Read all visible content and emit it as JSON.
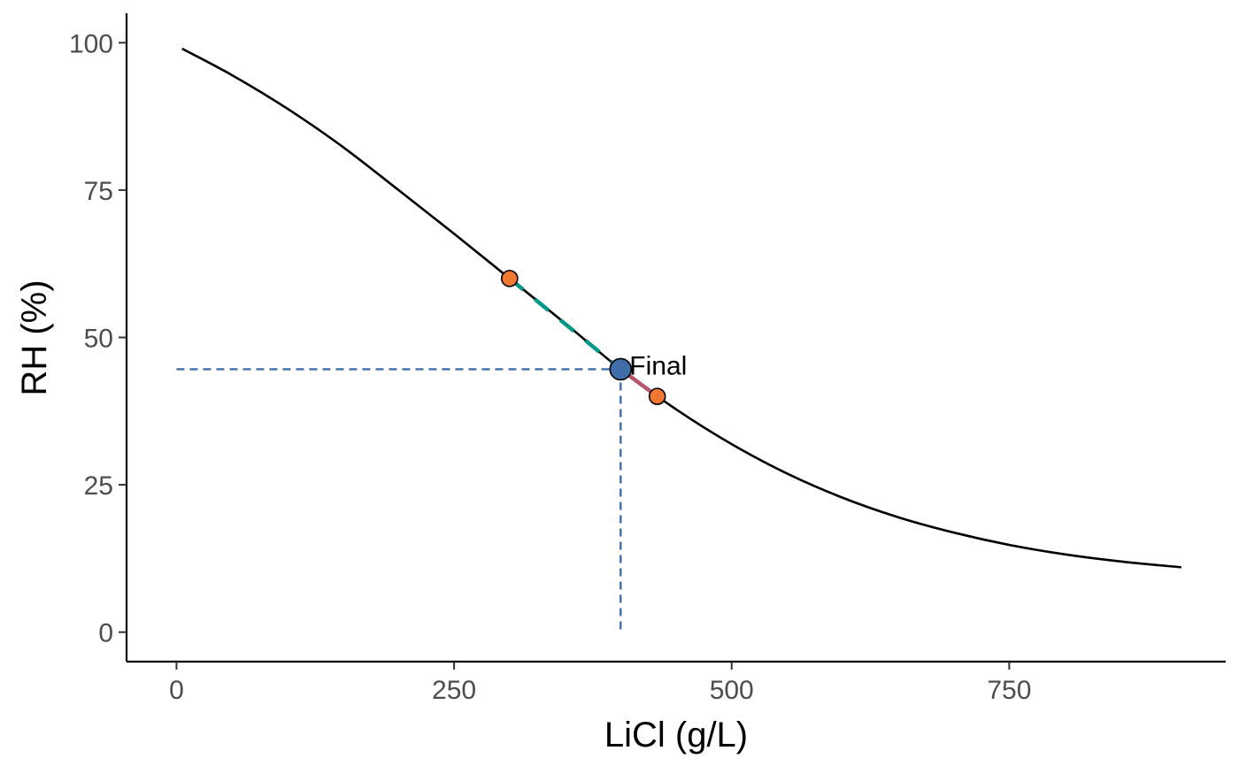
{
  "chart_data": {
    "type": "line",
    "xlabel": "LiCl (g/L)",
    "ylabel": "RH (%)",
    "xlim": [
      -45,
      945
    ],
    "ylim": [
      -5,
      105
    ],
    "x_ticks": [
      0,
      250,
      500,
      750
    ],
    "y_ticks": [
      0,
      25,
      50,
      75,
      100
    ],
    "x_tick_labels": [
      "0",
      "250",
      "500",
      "750"
    ],
    "y_tick_labels": [
      "0",
      "25",
      "50",
      "75",
      "100"
    ],
    "grid": false,
    "legend": "none",
    "curve": {
      "x": [
        5,
        50,
        100,
        150,
        200,
        250,
        300,
        350,
        400,
        450,
        500,
        550,
        600,
        650,
        700,
        750,
        800,
        850,
        905
      ],
      "y": [
        99,
        94.5,
        88.8,
        82.3,
        75.0,
        67.6,
        60.0,
        52.4,
        44.6,
        37.8,
        31.9,
        26.9,
        22.8,
        19.5,
        16.9,
        14.8,
        13.2,
        12.0,
        11.0
      ],
      "color": "#000000"
    },
    "segments": [
      {
        "x": [
          300,
          400
        ],
        "y": [
          60,
          44.6
        ],
        "color": "#009688",
        "style": "dashed"
      },
      {
        "x": [
          400,
          433
        ],
        "y": [
          44.6,
          40
        ],
        "color": "#B5546B",
        "style": "solid"
      }
    ],
    "points": [
      {
        "x": 300,
        "y": 60,
        "color": "#F07832",
        "size": "small"
      },
      {
        "x": 433,
        "y": 40,
        "color": "#F07832",
        "size": "small"
      },
      {
        "x": 400,
        "y": 44.6,
        "color": "#3F6EA8",
        "size": "large",
        "label": "Final"
      }
    ],
    "guide_lines": {
      "x": 400,
      "y": 44.6,
      "x_from": 0,
      "y_from": 0,
      "color": "#3F6EA8",
      "style": "dashed"
    }
  }
}
